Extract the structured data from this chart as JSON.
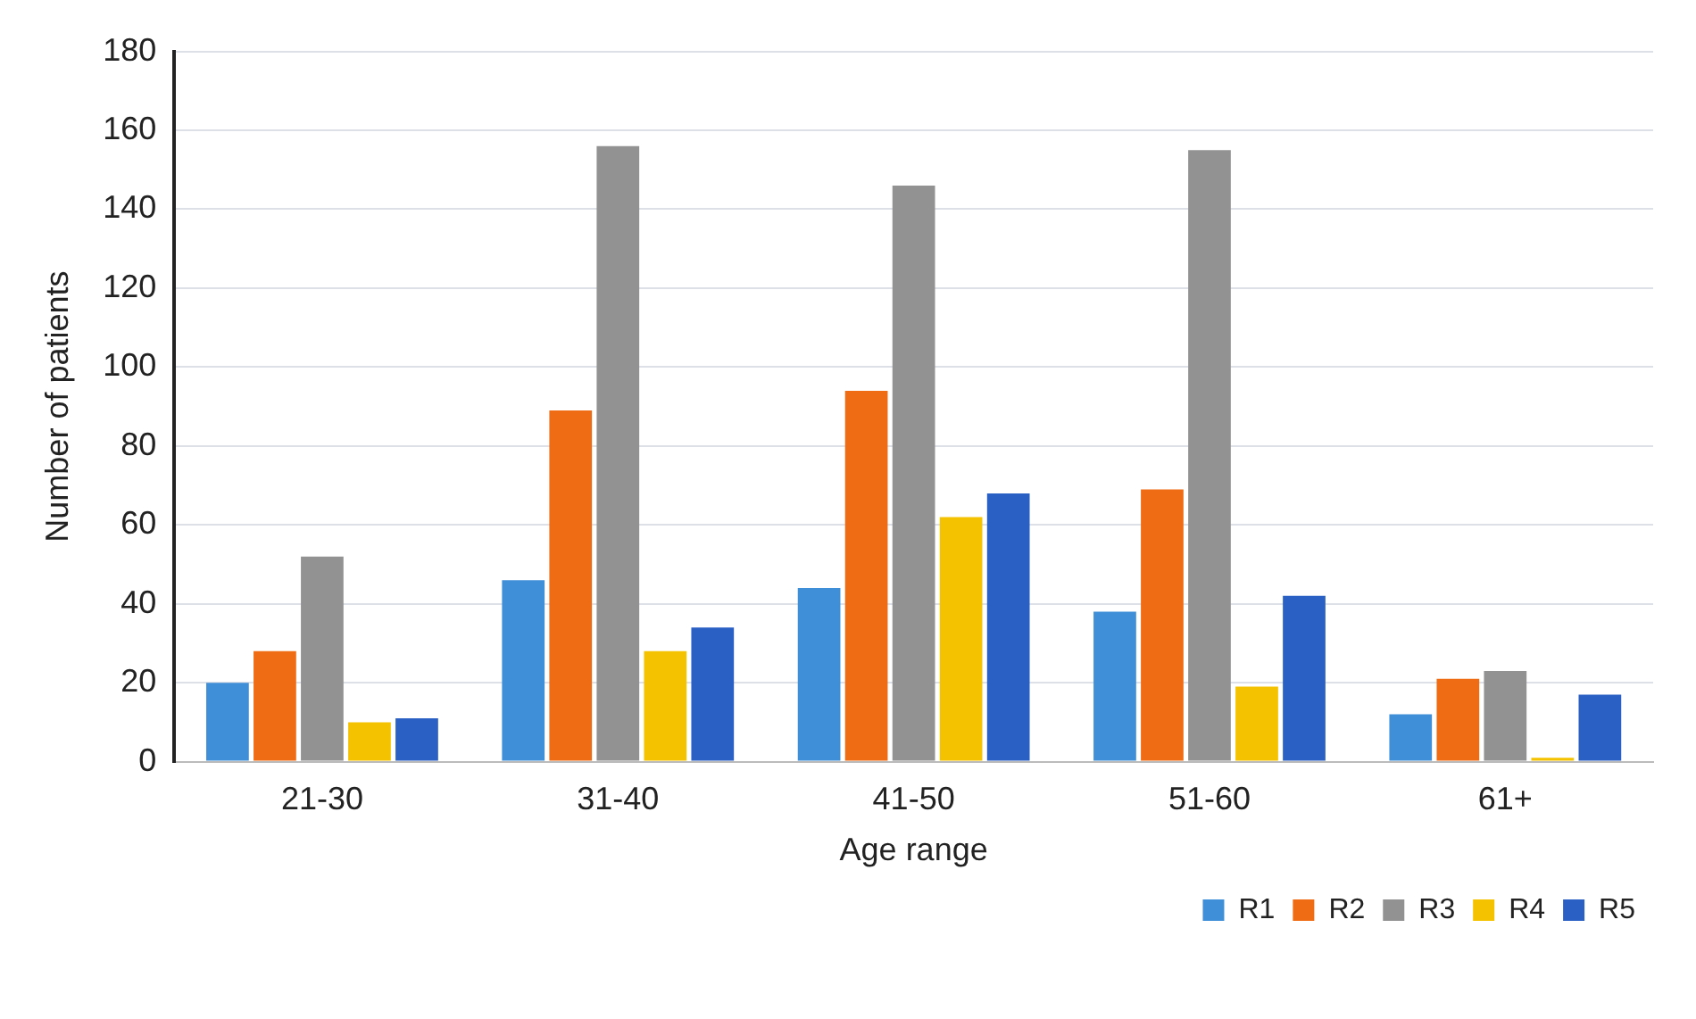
{
  "chart_data": {
    "type": "bar",
    "xlabel": "Age range",
    "ylabel": "Number of patients",
    "categories": [
      "21-30",
      "31-40",
      "41-50",
      "51-60",
      "61+"
    ],
    "series": [
      {
        "name": "R1",
        "color": "#3f8fd8",
        "values": [
          20,
          46,
          44,
          38,
          12
        ]
      },
      {
        "name": "R2",
        "color": "#f06c14",
        "values": [
          28,
          89,
          94,
          69,
          21
        ]
      },
      {
        "name": "R3",
        "color": "#929292",
        "values": [
          52,
          156,
          146,
          155,
          23
        ]
      },
      {
        "name": "R4",
        "color": "#f5c200",
        "values": [
          10,
          28,
          62,
          19,
          1
        ]
      },
      {
        "name": "R5",
        "color": "#2a5fc4",
        "values": [
          11,
          34,
          68,
          42,
          17
        ]
      }
    ],
    "ylim": [
      0,
      180
    ],
    "yticks": [
      0,
      20,
      40,
      60,
      80,
      100,
      120,
      140,
      160,
      180
    ],
    "grid": "y",
    "legend": "bottom right"
  }
}
